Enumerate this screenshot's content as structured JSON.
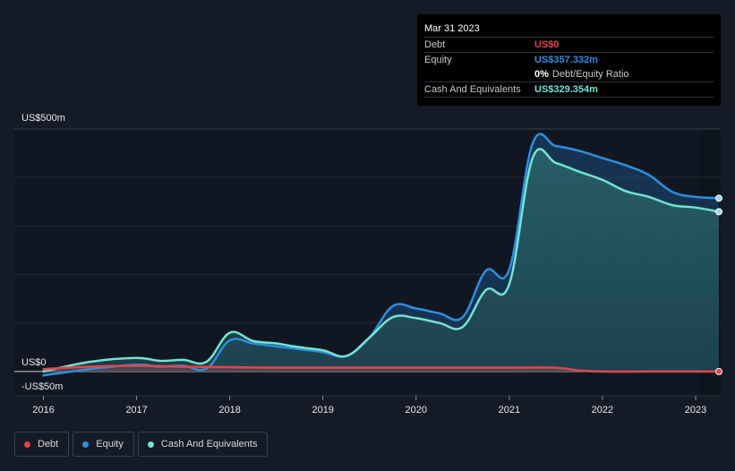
{
  "tooltip": {
    "date": "Mar 31 2023",
    "debt_label": "Debt",
    "debt_value": "US$0",
    "equity_label": "Equity",
    "equity_value": "US$357.332m",
    "ratio_value": "0%",
    "ratio_label": "Debt/Equity Ratio",
    "cash_label": "Cash And Equivalents",
    "cash_value": "US$329.354m"
  },
  "legend": {
    "debt": "Debt",
    "equity": "Equity",
    "cash": "Cash And Equivalents"
  },
  "colors": {
    "debt": "#e0474c",
    "equity": "#2d8fe0",
    "cash": "#72e4d3",
    "background": "#141b26"
  },
  "chart_data": {
    "type": "area",
    "title": "",
    "xlabel": "",
    "ylabel": "",
    "y_top_label": "US$500m",
    "y_zero_label": "US$0",
    "y_bottom_label": "-US$50m",
    "xlim": [
      2016.0,
      2023.25
    ],
    "ylim": [
      -50,
      500
    ],
    "x_ticks": [
      {
        "value": 2016,
        "label": "2016"
      },
      {
        "value": 2017,
        "label": "2017"
      },
      {
        "value": 2018,
        "label": "2018"
      },
      {
        "value": 2019,
        "label": "2019"
      },
      {
        "value": 2020,
        "label": "2020"
      },
      {
        "value": 2021,
        "label": "2021"
      },
      {
        "value": 2022,
        "label": "2022"
      },
      {
        "value": 2023,
        "label": "2023"
      }
    ],
    "series": [
      {
        "name": "Equity",
        "key": "equity",
        "points": [
          [
            2016.0,
            -8
          ],
          [
            2016.5,
            5
          ],
          [
            2017.0,
            14
          ],
          [
            2017.25,
            10
          ],
          [
            2017.5,
            12
          ],
          [
            2017.75,
            6
          ],
          [
            2018.0,
            64
          ],
          [
            2018.25,
            58
          ],
          [
            2018.5,
            52
          ],
          [
            2018.75,
            46
          ],
          [
            2019.0,
            40
          ],
          [
            2019.25,
            32
          ],
          [
            2019.5,
            70
          ],
          [
            2019.75,
            135
          ],
          [
            2020.0,
            130
          ],
          [
            2020.25,
            120
          ],
          [
            2020.5,
            112
          ],
          [
            2020.75,
            208
          ],
          [
            2021.0,
            210
          ],
          [
            2021.25,
            470
          ],
          [
            2021.5,
            465
          ],
          [
            2021.75,
            455
          ],
          [
            2022.0,
            440
          ],
          [
            2022.25,
            425
          ],
          [
            2022.5,
            405
          ],
          [
            2022.75,
            370
          ],
          [
            2023.0,
            360
          ],
          [
            2023.25,
            357.3
          ]
        ]
      },
      {
        "name": "Cash And Equivalents",
        "key": "cash",
        "points": [
          [
            2016.0,
            0
          ],
          [
            2016.5,
            20
          ],
          [
            2017.0,
            28
          ],
          [
            2017.25,
            22
          ],
          [
            2017.5,
            24
          ],
          [
            2017.75,
            20
          ],
          [
            2018.0,
            80
          ],
          [
            2018.25,
            63
          ],
          [
            2018.5,
            58
          ],
          [
            2018.75,
            50
          ],
          [
            2019.0,
            44
          ],
          [
            2019.25,
            32
          ],
          [
            2019.5,
            70
          ],
          [
            2019.75,
            112
          ],
          [
            2020.0,
            110
          ],
          [
            2020.25,
            100
          ],
          [
            2020.5,
            92
          ],
          [
            2020.75,
            168
          ],
          [
            2021.0,
            180
          ],
          [
            2021.25,
            440
          ],
          [
            2021.5,
            430
          ],
          [
            2021.75,
            412
          ],
          [
            2022.0,
            395
          ],
          [
            2022.25,
            372
          ],
          [
            2022.5,
            360
          ],
          [
            2022.75,
            343
          ],
          [
            2023.0,
            338
          ],
          [
            2023.25,
            329.4
          ]
        ]
      },
      {
        "name": "Debt",
        "key": "debt",
        "points": [
          [
            2016.0,
            5
          ],
          [
            2016.5,
            10
          ],
          [
            2017.0,
            12
          ],
          [
            2017.5,
            10
          ],
          [
            2018.0,
            9
          ],
          [
            2018.5,
            8
          ],
          [
            2019.0,
            8
          ],
          [
            2019.5,
            8
          ],
          [
            2020.0,
            8
          ],
          [
            2020.5,
            8
          ],
          [
            2021.0,
            8
          ],
          [
            2021.5,
            8
          ],
          [
            2021.75,
            2
          ],
          [
            2022.0,
            0
          ],
          [
            2022.5,
            0
          ],
          [
            2023.0,
            0
          ],
          [
            2023.25,
            0
          ]
        ]
      }
    ]
  }
}
